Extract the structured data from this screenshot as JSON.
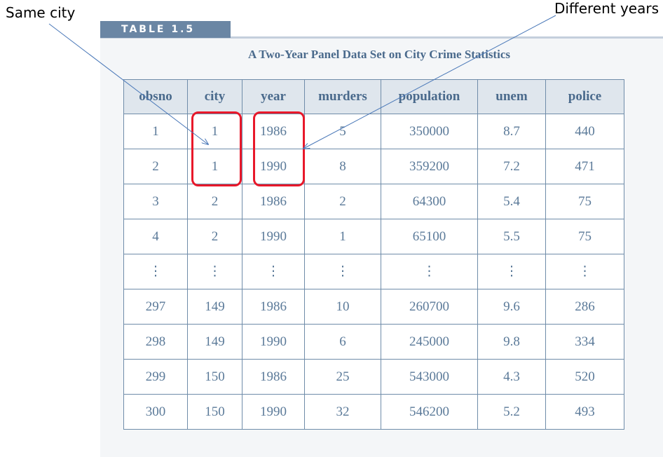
{
  "annotations": {
    "same_city": "Same city",
    "different_years": "Different years"
  },
  "table_label": "TABLE 1.5",
  "caption": "A Two-Year Panel Data Set on City Crime Statistics",
  "columns": [
    "obsno",
    "city",
    "year",
    "murders",
    "population",
    "unem",
    "police"
  ],
  "rows": [
    [
      "1",
      "1",
      "1986",
      "5",
      "350000",
      "8.7",
      "440"
    ],
    [
      "2",
      "1",
      "1990",
      "8",
      "359200",
      "7.2",
      "471"
    ],
    [
      "3",
      "2",
      "1986",
      "2",
      "64300",
      "5.4",
      "75"
    ],
    [
      "4",
      "2",
      "1990",
      "1",
      "65100",
      "5.5",
      "75"
    ],
    [
      "⋮",
      "⋮",
      "⋮",
      "⋮",
      "⋮",
      "⋮",
      "⋮"
    ],
    [
      "297",
      "149",
      "1986",
      "10",
      "260700",
      "9.6",
      "286"
    ],
    [
      "298",
      "149",
      "1990",
      "6",
      "245000",
      "9.8",
      "334"
    ],
    [
      "299",
      "150",
      "1986",
      "25",
      "543000",
      "4.3",
      "520"
    ],
    [
      "300",
      "150",
      "1990",
      "32",
      "546200",
      "5.2",
      "493"
    ]
  ],
  "colors": {
    "highlight": "#e8182a",
    "header_bg": "#dfe6ed",
    "text": "#5b7a99",
    "label_bg": "#6a86a4"
  }
}
